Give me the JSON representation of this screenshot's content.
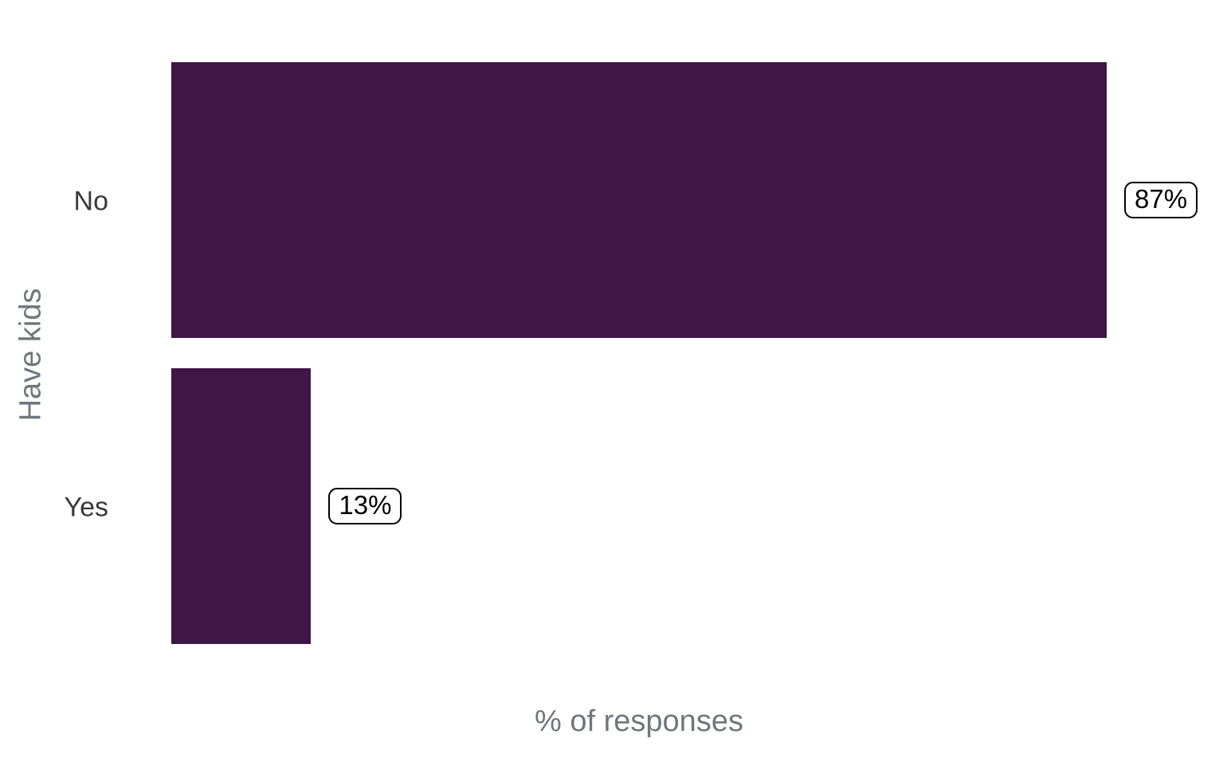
{
  "chart_data": {
    "type": "bar",
    "orientation": "horizontal",
    "title": "",
    "xlabel": "% of responses",
    "ylabel": "Have kids",
    "categories": [
      "No",
      "Yes"
    ],
    "values": [
      87,
      13
    ],
    "value_labels": [
      "87%",
      "13%"
    ],
    "xlim": [
      0,
      87
    ],
    "grid": false,
    "legend": "none",
    "bar_color": "#3f1746",
    "style": {
      "background": "#ffffff",
      "axis_title_color": "#6f777d",
      "tick_label_color": "#3a3a3a",
      "value_box_fill": "#ffffff",
      "value_box_border": "#000000",
      "value_box_text": "#000000"
    }
  }
}
